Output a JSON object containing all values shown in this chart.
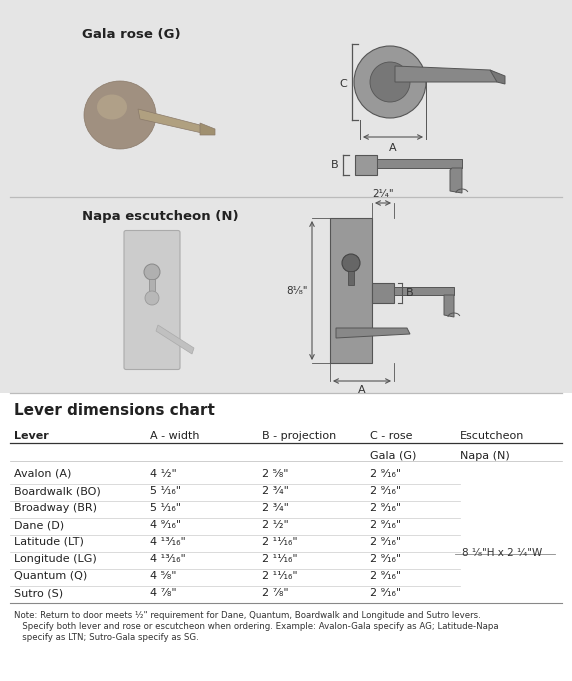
{
  "bg_color": "#e5e5e5",
  "white_bg": "#ffffff",
  "title_gala": "Gala rose (G)",
  "title_napa": "Napa escutcheon (N)",
  "chart_title": "Lever dimensions chart",
  "col_headers": [
    "Lever",
    "A - width",
    "B - projection",
    "C - rose",
    "Escutcheon"
  ],
  "sub_headers": [
    "",
    "",
    "",
    "Gala (G)",
    "Napa (N)"
  ],
  "rows": [
    [
      "Avalon (A)",
      "4 ¹⁄₂\"",
      "2 ⁵⁄₈\"",
      "2 ⁹⁄₁₆\"",
      ""
    ],
    [
      "Boardwalk (BO)",
      "5 ¹⁄₁₆\"",
      "2 ³⁄₄\"",
      "2 ⁹⁄₁₆\"",
      ""
    ],
    [
      "Broadway (BR)",
      "5 ¹⁄₁₆\"",
      "2 ³⁄₄\"",
      "2 ⁹⁄₁₆\"",
      ""
    ],
    [
      "Dane (D)",
      "4 ⁹⁄₁₆\"",
      "2 ¹⁄₂\"",
      "2 ⁹⁄₁₆\"",
      ""
    ],
    [
      "Latitude (LT)",
      "4 ¹³⁄₁₆\"",
      "2 ¹¹⁄₁₆\"",
      "2 ⁹⁄₁₆\"",
      ""
    ],
    [
      "Longitude (LG)",
      "4 ¹³⁄₁₆\"",
      "2 ¹¹⁄₁₆\"",
      "2 ⁹⁄₁₆\"",
      ""
    ],
    [
      "Quantum (Q)",
      "4 ⁵⁄₈\"",
      "2 ¹¹⁄₁₆\"",
      "2 ⁹⁄₁₆\"",
      ""
    ],
    [
      "Sutro (S)",
      "4 ⁷⁄₈\"",
      "2 ⁷⁄₈\"",
      "2 ⁹⁄₁₆\"",
      ""
    ]
  ],
  "escutcheon_label": "8 ¹⁄₈\"H x 2 ¹⁄₄\"W",
  "note_line1": "Note: Return to door meets ¹⁄₂\" requirement for Dane, Quantum, Boardwalk and Longitude and Sutro levers.",
  "note_line2": "   Specify both lever and rose or escutcheon when ordering. Example: Avalon-Gala specify as AG; Latitude-Napa",
  "note_line3": "   specify as LTN; Sutro-Gala specify as SG.",
  "napa_dim_width": "2¹⁄₄\"",
  "napa_dim_height": "8¹⁄₈\""
}
